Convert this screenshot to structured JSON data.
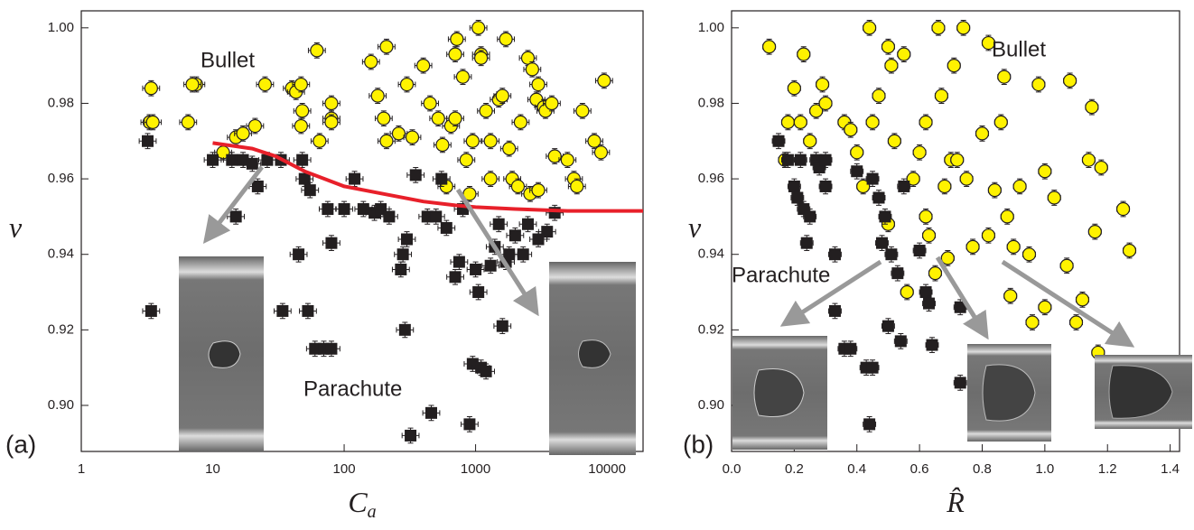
{
  "chart_data": [
    {
      "type": "scatter",
      "x_log": true,
      "x_label": {
        "main": "C",
        "sub": "a"
      },
      "y_label": "ν",
      "annotations": [
        "Bullet",
        "Parachute",
        "(a)"
      ],
      "xlim": [
        1,
        18800
      ],
      "ylim": [
        0.8878,
        1.0045
      ],
      "xticks": [
        1,
        10,
        100,
        1000,
        10000
      ],
      "yticks": [
        {
          "value": 0.9,
          "label": "0.90"
        },
        0.92,
        0.94,
        0.96,
        0.98,
        {
          "value": 1.0,
          "label": "1.00"
        }
      ],
      "series": [
        {
          "mode": "markers",
          "marker": "circle",
          "color": "#fff200",
          "yerr": 0.002,
          "xerr": 0.16,
          "x": [
            3.4,
            3.3,
            3.5,
            6.5,
            7.5,
            7,
            12,
            15,
            17,
            21,
            25,
            40,
            43,
            47,
            47,
            48,
            80,
            80,
            80,
            65,
            62,
            160,
            180,
            210,
            200,
            210,
            260,
            300,
            330,
            400,
            450,
            520,
            560,
            650,
            700,
            720,
            700,
            800,
            850,
            950,
            1050,
            1100,
            1100,
            1200,
            1300,
            1500,
            1600,
            1700,
            1800,
            1900,
            2200,
            2500,
            2700,
            2900,
            3000,
            3300,
            3400,
            3800,
            4000,
            5000,
            5600,
            5900,
            6500,
            8000,
            9000,
            9500,
            600,
            900,
            1300,
            2100,
            2600,
            3000
          ],
          "values": [
            0.984,
            0.975,
            0.975,
            0.975,
            0.985,
            0.985,
            0.967,
            0.971,
            0.972,
            0.974,
            0.985,
            0.984,
            0.983,
            0.985,
            0.974,
            0.978,
            0.98,
            0.976,
            0.975,
            0.97,
            0.994,
            0.991,
            0.982,
            0.995,
            0.976,
            0.97,
            0.972,
            0.985,
            0.971,
            0.99,
            0.98,
            0.976,
            0.969,
            0.974,
            0.976,
            0.997,
            0.993,
            0.987,
            0.965,
            0.97,
            1.0,
            0.993,
            0.992,
            0.978,
            0.97,
            0.981,
            0.982,
            0.997,
            0.968,
            0.96,
            0.975,
            0.992,
            0.989,
            0.981,
            0.985,
            0.979,
            0.978,
            0.98,
            0.966,
            0.965,
            0.96,
            0.958,
            0.978,
            0.97,
            0.967,
            0.986,
            0.958,
            0.956,
            0.96,
            0.958,
            0.956,
            0.957
          ]
        },
        {
          "mode": "markers",
          "marker": "square",
          "color": "#231f20",
          "yerr": 0.002,
          "xerr": 0.16,
          "x": [
            3.2,
            3.4,
            10,
            14,
            15,
            17,
            20,
            22,
            26,
            33,
            34,
            45,
            48,
            50,
            53,
            55,
            60,
            70,
            80,
            75,
            80,
            100,
            120,
            140,
            170,
            190,
            220,
            270,
            280,
            290,
            300,
            320,
            350,
            430,
            460,
            500,
            550,
            600,
            700,
            750,
            800,
            900,
            950,
            1000,
            1050,
            1100,
            1200,
            1300,
            1500,
            1600,
            1700,
            2000,
            2300,
            2500,
            3000,
            3500,
            4000,
            1800,
            1400
          ],
          "values": [
            0.97,
            0.925,
            0.965,
            0.965,
            0.95,
            0.965,
            0.964,
            0.958,
            0.965,
            0.965,
            0.925,
            0.94,
            0.965,
            0.96,
            0.925,
            0.957,
            0.915,
            0.915,
            0.915,
            0.952,
            0.943,
            0.952,
            0.96,
            0.952,
            0.951,
            0.952,
            0.95,
            0.936,
            0.94,
            0.92,
            0.944,
            0.892,
            0.961,
            0.95,
            0.898,
            0.95,
            0.96,
            0.947,
            0.934,
            0.938,
            0.952,
            0.895,
            0.911,
            0.936,
            0.93,
            0.91,
            0.909,
            0.937,
            0.948,
            0.921,
            0.938,
            0.945,
            0.94,
            0.948,
            0.944,
            0.946,
            0.951,
            0.94,
            0.942
          ]
        },
        {
          "mode": "line",
          "color": "#e8202a",
          "x": [
            10,
            20,
            30,
            50,
            100,
            200,
            400,
            700,
            1000,
            2000,
            5000,
            18800
          ],
          "values": [
            0.9695,
            0.968,
            0.966,
            0.962,
            0.958,
            0.956,
            0.954,
            0.953,
            0.9525,
            0.952,
            0.9515,
            0.9515
          ]
        }
      ]
    },
    {
      "type": "scatter",
      "x_log": false,
      "x_label": {
        "main": "R̂",
        "sub": ""
      },
      "y_label": "ν",
      "annotations": [
        "Bullet",
        "Parachute",
        "(b)"
      ],
      "xlim": [
        0,
        1.43
      ],
      "ylim": [
        0.8878,
        1.0045
      ],
      "xticks": [
        {
          "value": 0,
          "label": "0.0"
        },
        0.2,
        0.4,
        0.6,
        0.8,
        {
          "value": 1.0,
          "label": "1.0"
        },
        1.2,
        1.4
      ],
      "yticks": [
        {
          "value": 0.9,
          "label": "0.90"
        },
        0.92,
        0.94,
        0.96,
        0.98,
        {
          "value": 1.0,
          "label": "1.00"
        }
      ],
      "series": [
        {
          "mode": "markers",
          "marker": "circle",
          "color": "#fff200",
          "yerr": 0.002,
          "xerr": 0.02,
          "x": [
            0.12,
            0.17,
            0.18,
            0.2,
            0.22,
            0.23,
            0.25,
            0.27,
            0.29,
            0.3,
            0.36,
            0.38,
            0.4,
            0.42,
            0.44,
            0.45,
            0.47,
            0.5,
            0.51,
            0.52,
            0.55,
            0.58,
            0.6,
            0.62,
            0.63,
            0.66,
            0.67,
            0.68,
            0.7,
            0.71,
            0.72,
            0.74,
            0.75,
            0.77,
            0.8,
            0.82,
            0.84,
            0.86,
            0.87,
            0.88,
            0.9,
            0.92,
            0.95,
            0.96,
            0.98,
            1.0,
            1.0,
            1.03,
            1.07,
            1.08,
            1.1,
            1.12,
            1.14,
            1.15,
            1.16,
            1.17,
            1.18,
            1.25,
            1.27,
            0.69,
            0.89,
            0.62,
            0.5,
            0.56,
            0.65,
            0.82
          ],
          "values": [
            0.995,
            0.965,
            0.975,
            0.984,
            0.975,
            0.993,
            0.97,
            0.978,
            0.985,
            0.98,
            0.975,
            0.973,
            0.967,
            0.958,
            1.0,
            0.975,
            0.982,
            0.995,
            0.99,
            0.97,
            0.993,
            0.96,
            0.967,
            0.975,
            0.945,
            1.0,
            0.982,
            0.958,
            0.965,
            0.99,
            0.965,
            1.0,
            0.96,
            0.942,
            0.972,
            0.996,
            0.957,
            0.975,
            0.987,
            0.95,
            0.942,
            0.958,
            0.94,
            0.922,
            0.985,
            0.926,
            0.962,
            0.955,
            0.937,
            0.986,
            0.922,
            0.928,
            0.965,
            0.979,
            0.946,
            0.914,
            0.963,
            0.952,
            0.941,
            0.939,
            0.929,
            0.95,
            0.948,
            0.93,
            0.935,
            0.945
          ]
        },
        {
          "mode": "markers",
          "marker": "square",
          "color": "#231f20",
          "yerr": 0.002,
          "xerr": 0.02,
          "x": [
            0.15,
            0.18,
            0.2,
            0.21,
            0.22,
            0.23,
            0.24,
            0.25,
            0.27,
            0.28,
            0.3,
            0.3,
            0.33,
            0.33,
            0.36,
            0.38,
            0.43,
            0.44,
            0.45,
            0.47,
            0.48,
            0.49,
            0.5,
            0.51,
            0.53,
            0.54,
            0.55,
            0.6,
            0.62,
            0.63,
            0.64,
            0.73,
            0.73,
            0.45,
            0.4
          ],
          "values": [
            0.97,
            0.965,
            0.958,
            0.955,
            0.965,
            0.952,
            0.943,
            0.95,
            0.965,
            0.963,
            0.958,
            0.965,
            0.925,
            0.94,
            0.915,
            0.915,
            0.91,
            0.895,
            0.91,
            0.955,
            0.943,
            0.95,
            0.921,
            0.94,
            0.935,
            0.917,
            0.958,
            0.941,
            0.93,
            0.927,
            0.916,
            0.926,
            0.906,
            0.96,
            0.962
          ]
        }
      ]
    }
  ]
}
